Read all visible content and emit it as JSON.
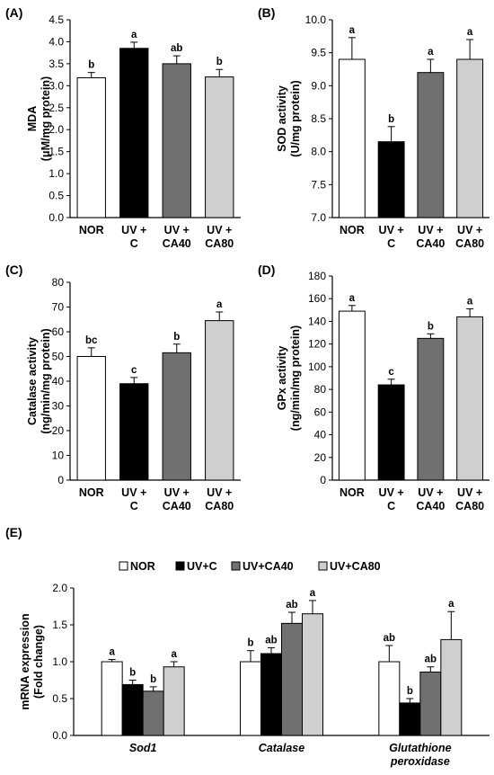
{
  "colors": {
    "NOR": "#ffffff",
    "UV+C": "#000000",
    "UV+CA40": "#707070",
    "UV+CA80": "#cfcfcf"
  },
  "chart_data": [
    {
      "panel": "(A)",
      "type": "bar",
      "ylabel_lines": [
        "MDA",
        "(μM/mg protein)"
      ],
      "ylim": [
        0,
        4.5
      ],
      "yticks": [
        "0.0",
        "0.5",
        "1.0",
        "1.5",
        "2.0",
        "2.5",
        "3.0",
        "3.5",
        "4.0",
        "4.5"
      ],
      "categories": [
        [
          "NOR"
        ],
        [
          "UV +",
          "C"
        ],
        [
          "UV +",
          "CA40"
        ],
        [
          "UV +",
          "CA80"
        ]
      ],
      "values": [
        3.18,
        3.85,
        3.5,
        3.2
      ],
      "errors": [
        0.12,
        0.14,
        0.18,
        0.17
      ],
      "letters": [
        "b",
        "a",
        "ab",
        "b"
      ]
    },
    {
      "panel": "(B)",
      "type": "bar",
      "ylabel_lines": [
        "SOD activity",
        "(U/mg protein)"
      ],
      "ylim": [
        7.0,
        10.0
      ],
      "yticks": [
        "7.0",
        "7.5",
        "8.0",
        "8.5",
        "9.0",
        "9.5",
        "10.0"
      ],
      "categories": [
        [
          "NOR"
        ],
        [
          "UV +",
          "C"
        ],
        [
          "UV +",
          "CA40"
        ],
        [
          "UV +",
          "CA80"
        ]
      ],
      "values": [
        9.4,
        8.15,
        9.2,
        9.4
      ],
      "errors": [
        0.33,
        0.23,
        0.2,
        0.3
      ],
      "letters": [
        "a",
        "b",
        "a",
        "a"
      ]
    },
    {
      "panel": "(C)",
      "type": "bar",
      "ylabel_lines": [
        "Catalase activity",
        "(ng/min/mg protein)"
      ],
      "ylim": [
        0,
        80
      ],
      "yticks": [
        "0",
        "10",
        "20",
        "30",
        "40",
        "50",
        "60",
        "70",
        "80"
      ],
      "categories": [
        [
          "NOR"
        ],
        [
          "UV +",
          "C"
        ],
        [
          "UV +",
          "CA40"
        ],
        [
          "UV +",
          "CA80"
        ]
      ],
      "values": [
        50,
        39,
        51.5,
        64.5
      ],
      "errors": [
        3.5,
        2.5,
        3.5,
        3.5
      ],
      "letters": [
        "bc",
        "c",
        "b",
        "a"
      ]
    },
    {
      "panel": "(D)",
      "type": "bar",
      "ylabel_lines": [
        "GPx activity",
        "(ng/min/mg protein)"
      ],
      "ylim": [
        0,
        180
      ],
      "yticks": [
        "0",
        "20",
        "40",
        "60",
        "80",
        "100",
        "120",
        "140",
        "160",
        "180"
      ],
      "categories": [
        [
          "NOR"
        ],
        [
          "UV +",
          "C"
        ],
        [
          "UV +",
          "CA40"
        ],
        [
          "UV +",
          "CA80"
        ]
      ],
      "values": [
        149,
        84,
        125,
        144
      ],
      "errors": [
        5,
        5,
        4,
        7
      ],
      "letters": [
        "a",
        "c",
        "b",
        "a"
      ]
    },
    {
      "panel": "(E)",
      "type": "bar",
      "ylabel_lines": [
        "mRNA expression",
        "(Fold change)"
      ],
      "ylim": [
        0,
        2.0
      ],
      "yticks": [
        "0.0",
        "0.5",
        "1.0",
        "1.5",
        "2.0"
      ],
      "legend": [
        "NOR",
        "UV+C",
        "UV+CA40",
        "UV+CA80"
      ],
      "groups": [
        [
          "Sod1"
        ],
        [
          "Catalase"
        ],
        [
          "Glutathione",
          "peroxidase"
        ]
      ],
      "series": [
        {
          "name": "NOR",
          "values": [
            1.0,
            1.0,
            1.0
          ],
          "errors": [
            0.03,
            0.15,
            0.22
          ],
          "letters": [
            "a",
            "b",
            "ab"
          ]
        },
        {
          "name": "UV+C",
          "values": [
            0.69,
            1.11,
            0.44
          ],
          "errors": [
            0.06,
            0.08,
            0.06
          ],
          "letters": [
            "b",
            "ab",
            "b"
          ]
        },
        {
          "name": "UV+CA40",
          "values": [
            0.6,
            1.52,
            0.86
          ],
          "errors": [
            0.06,
            0.15,
            0.07
          ],
          "letters": [
            "b",
            "ab",
            "ab"
          ]
        },
        {
          "name": "UV+CA80",
          "values": [
            0.93,
            1.65,
            1.3
          ],
          "errors": [
            0.07,
            0.18,
            0.38
          ],
          "letters": [
            "a",
            "a",
            "a"
          ]
        }
      ]
    }
  ]
}
